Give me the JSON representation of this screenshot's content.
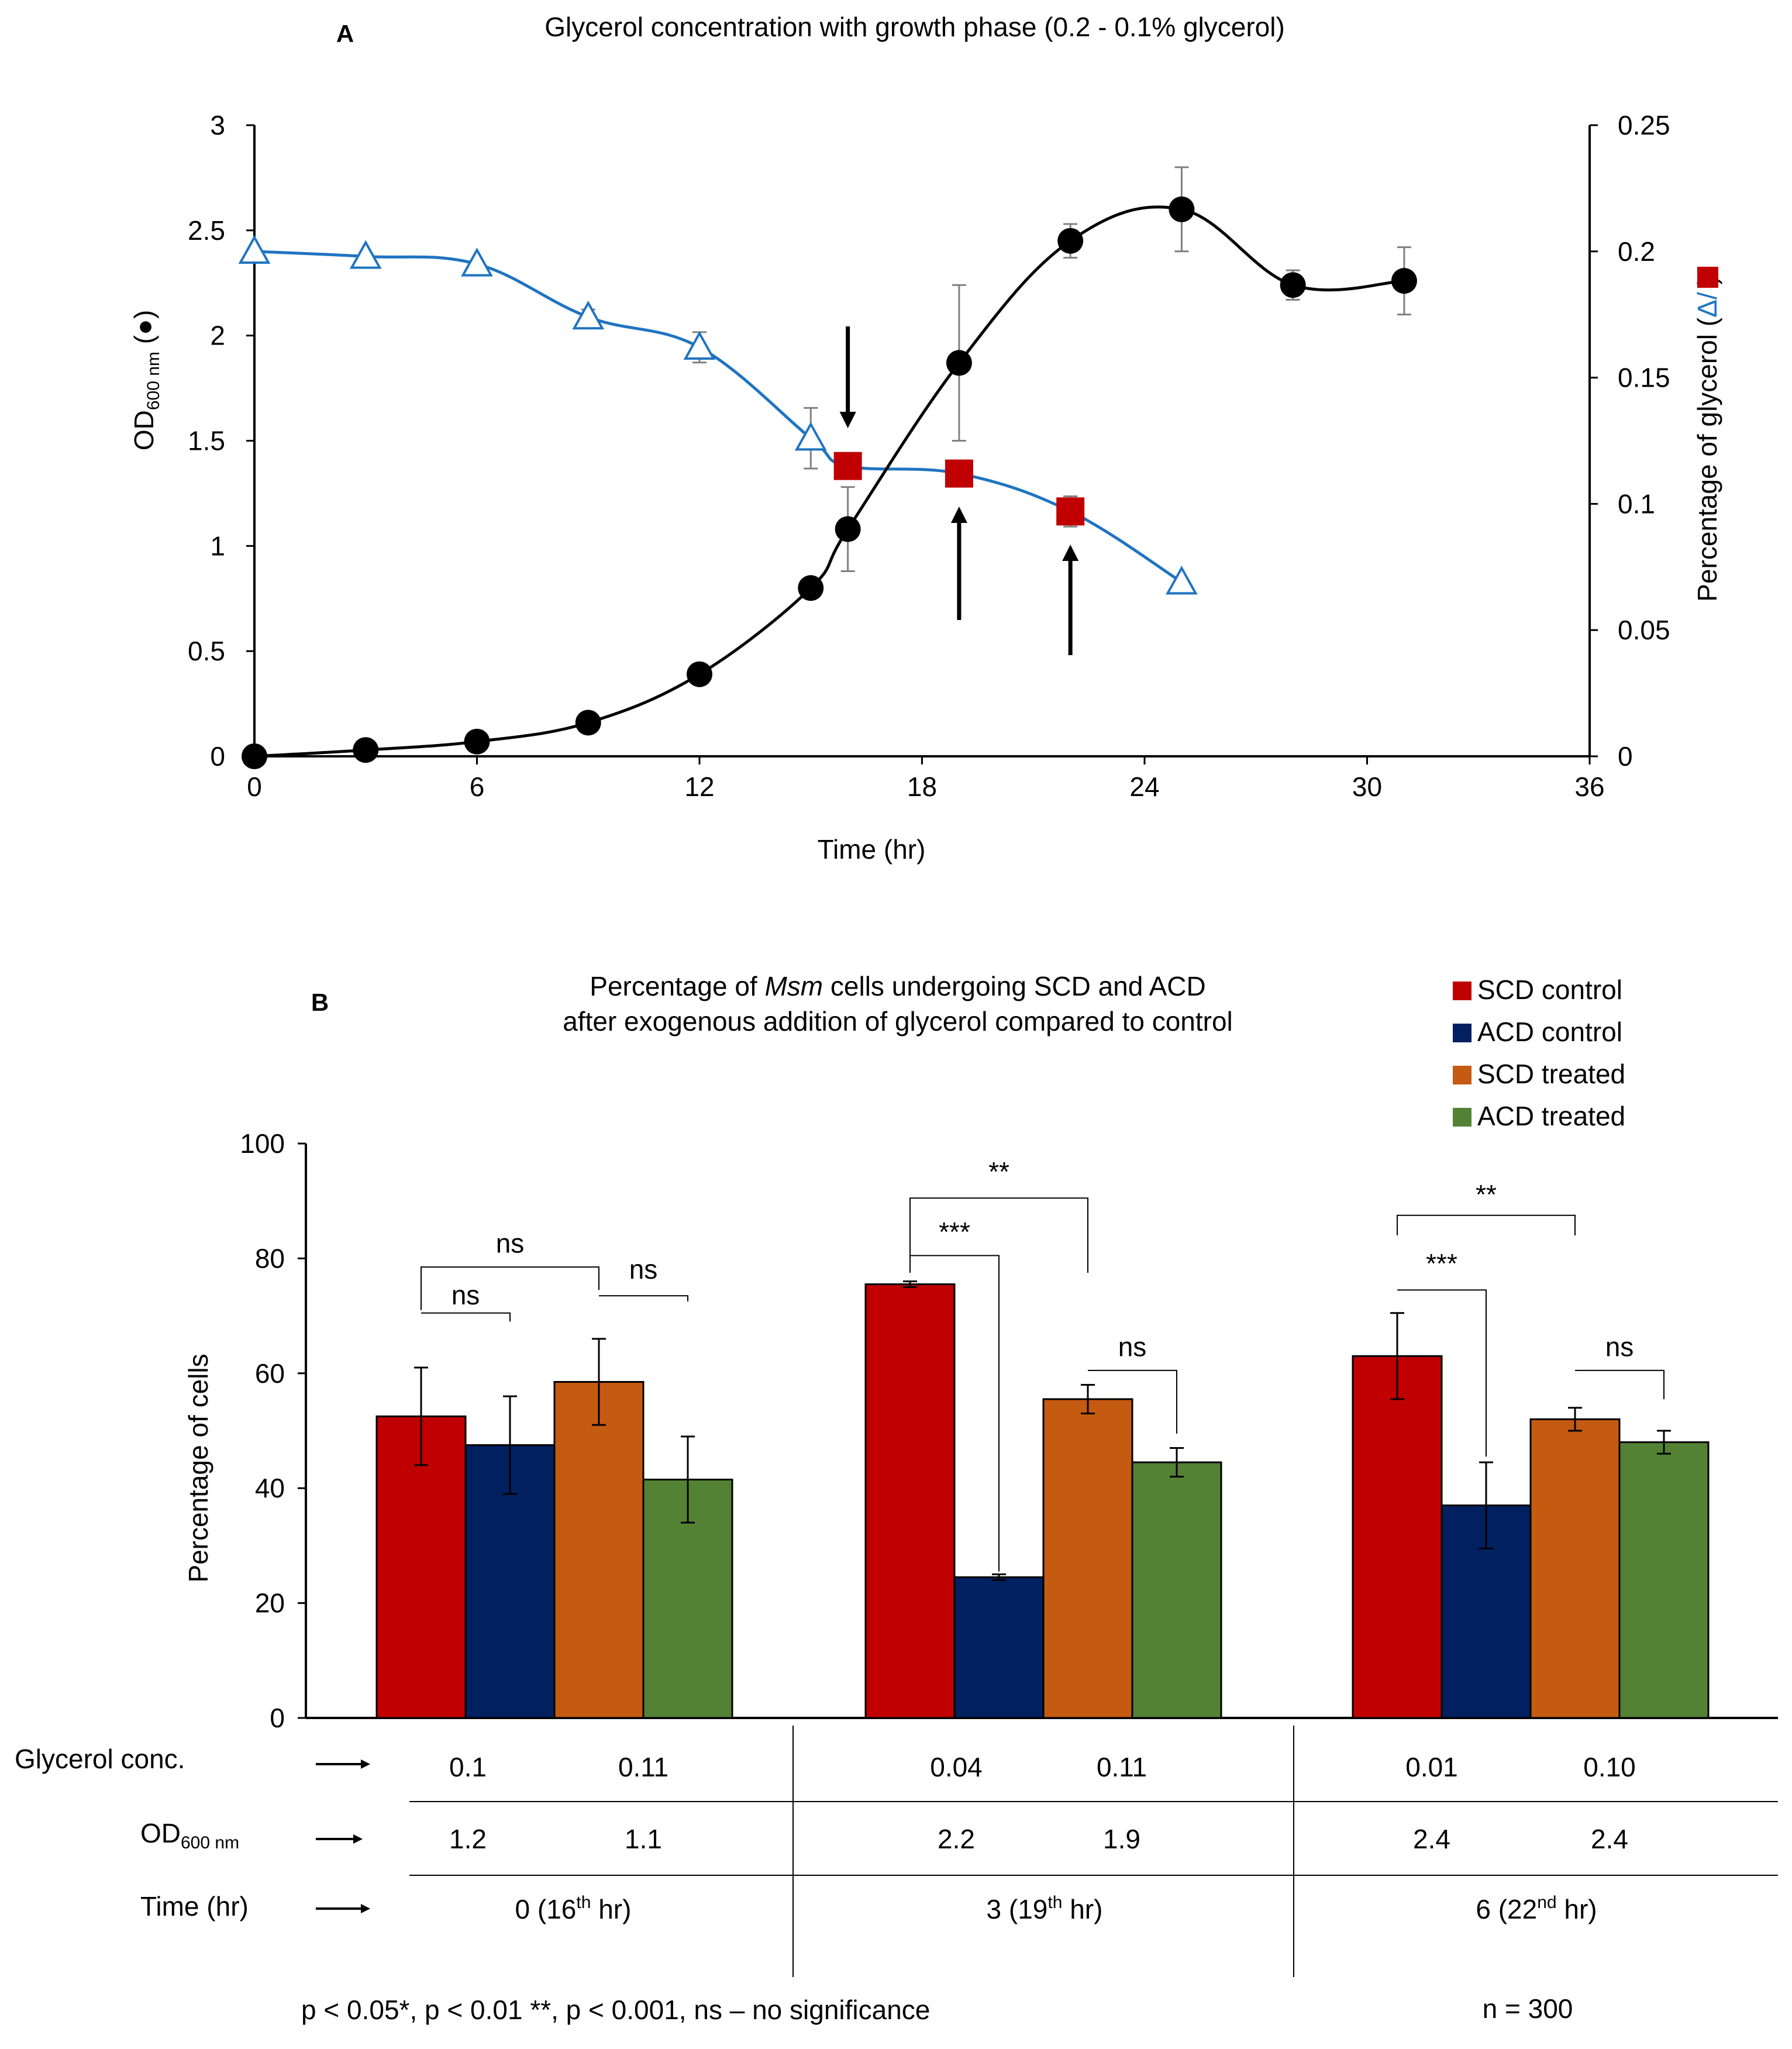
{
  "panel_a": {
    "label": "A",
    "title": "Glycerol concentration with growth phase (0.2 - 0.1% glycerol)",
    "ylabel_left_main": "OD",
    "ylabel_left_sub": "600 nm",
    "ylabel_left_suffix": "(●)",
    "ylabel_right_main": "Percentage of glycerol (",
    "ylabel_right_mid": "Δ/",
    "ylabel_right_end": ")",
    "xlabel": "Time (hr)"
  },
  "panel_b": {
    "label": "B",
    "title_line1_pre": "Percentage of ",
    "title_line1_italic": "Msm",
    "title_line1_post": " cells undergoing SCD and ACD",
    "title_line2": "after exogenous addition of glycerol compared to control",
    "ylabel": "Percentage of cells",
    "sig_labels": [
      "ns",
      "ns",
      "ns",
      "**",
      "***",
      "ns",
      "**",
      "***",
      "ns"
    ],
    "table": {
      "row_labels": [
        "Glycerol conc.",
        "OD",
        "Time (hr)"
      ],
      "od_sub": "600 nm",
      "glycerol_values": [
        "0.1",
        "0.11",
        "0.04",
        "0.11",
        "0.01",
        "0.10"
      ],
      "od_values": [
        "1.2",
        "1.1",
        "2.2",
        "1.9",
        "2.4",
        "2.4"
      ],
      "time_values": [
        {
          "pre": "0 (16",
          "sup": "th",
          "post": " hr)"
        },
        {
          "pre": "3 (19",
          "sup": "th",
          "post": " hr)"
        },
        {
          "pre": "6 (22",
          "sup": "nd",
          "post": " hr)"
        }
      ]
    },
    "footnote": "p < 0.05*, p < 0.01 **, p < 0.001, ns – no significance",
    "n_label": "n = 300"
  },
  "colors": {
    "od": "#000000",
    "glycerol": "#1F74C0",
    "glycerol_marker": "#C00000",
    "scd_control": "#C00000",
    "acd_control": "#002060",
    "scd_treated": "#C55A11",
    "acd_treated": "#548235"
  },
  "chart_data": [
    {
      "type": "line",
      "title": "Glycerol concentration with growth phase (0.2 - 0.1% glycerol)",
      "xlabel": "Time (hr)",
      "ylabel": "OD600 nm",
      "ylabel_right": "Percentage of glycerol",
      "xlim": [
        0,
        36
      ],
      "ylim": [
        0,
        3
      ],
      "ylim_right": [
        0,
        0.25
      ],
      "xticks": [
        "0",
        "6",
        "12",
        "18",
        "24",
        "30",
        "36"
      ],
      "yticks": [
        "0",
        "0.5",
        "1",
        "1.5",
        "2",
        "2.5",
        "3"
      ],
      "yticks_right": [
        "0",
        "0.05",
        "0.1",
        "0.15",
        "0.2",
        "0.25"
      ],
      "series": [
        {
          "name": "OD600 nm",
          "axis": "left",
          "marker": "filled circle",
          "x": [
            0,
            3,
            6,
            9,
            12,
            15,
            16,
            19,
            22,
            25,
            28,
            31
          ],
          "y": [
            0,
            0.03,
            0.07,
            0.16,
            0.39,
            0.8,
            1.08,
            1.87,
            2.45,
            2.6,
            2.24,
            2.26
          ],
          "err": [
            0,
            0,
            0,
            0,
            0,
            0,
            0.2,
            0.37,
            0.08,
            0.2,
            0.07,
            0.16
          ]
        },
        {
          "name": "Percentage of glycerol",
          "axis": "right",
          "marker": "open triangle",
          "x": [
            0,
            3,
            6,
            9,
            12,
            15,
            16,
            19,
            22,
            25
          ],
          "y": [
            0.2,
            0.198,
            0.195,
            0.174,
            0.162,
            0.126,
            0.115,
            0.112,
            0.097,
            0.069
          ],
          "err": [
            0,
            0,
            0,
            0.003,
            0.006,
            0.012,
            0.003,
            0.005,
            0.006,
            0
          ],
          "highlighted_points_x": [
            16,
            19,
            22
          ]
        }
      ],
      "arrows_x": [
        16,
        19,
        22
      ]
    },
    {
      "type": "bar",
      "title": "Percentage of Msm cells undergoing SCD and ACD after exogenous addition of glycerol compared to control",
      "ylabel": "Percentage of cells",
      "ylim": [
        0,
        100
      ],
      "yticks": [
        "0",
        "20",
        "40",
        "60",
        "80",
        "100"
      ],
      "categories": [
        "0 (16th hr)",
        "3 (19th hr)",
        "6 (22nd hr)"
      ],
      "legend_position": "top-right",
      "series": [
        {
          "name": "SCD control",
          "values": [
            52.5,
            75.5,
            63
          ],
          "err": [
            8.5,
            0.5,
            7.5
          ]
        },
        {
          "name": "ACD control",
          "values": [
            47.5,
            24.5,
            37
          ],
          "err": [
            8.5,
            0.5,
            7.5
          ]
        },
        {
          "name": "SCD treated",
          "values": [
            58.5,
            55.5,
            52
          ],
          "err": [
            7.5,
            2.5,
            2
          ]
        },
        {
          "name": "ACD treated",
          "values": [
            41.5,
            44.5,
            48
          ],
          "err": [
            7.5,
            2.5,
            2
          ]
        }
      ]
    }
  ]
}
